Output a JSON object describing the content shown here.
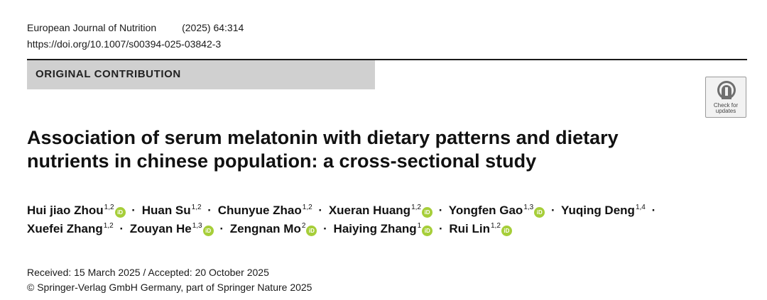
{
  "header": {
    "journal": "European Journal of Nutrition",
    "volume_info": "(2025) 64:314",
    "doi": "https://doi.org/10.1007/s00394-025-03842-3"
  },
  "section_label": "ORIGINAL CONTRIBUTION",
  "crossmark": {
    "line1": "Check for",
    "line2": "updates",
    "icon": "crossmark-icon"
  },
  "title": {
    "line1": "Association of serum melatonin with dietary patterns and dietary",
    "line2": "nutrients in chinese population: a cross-sectional study"
  },
  "orcid_label": "iD",
  "separator": "·",
  "authors": [
    {
      "name": "Hui jiao Zhou",
      "aff": "1,2"
    },
    {
      "name": "Huan Su",
      "aff": "1,2"
    },
    {
      "name": "Chunyue Zhao",
      "aff": "1,2"
    },
    {
      "name": "Xueran Huang",
      "aff": "1,2"
    },
    {
      "name": "Yongfen Gao",
      "aff": "1,3"
    },
    {
      "name": "Yuqing Deng",
      "aff": "1,4"
    },
    {
      "name": "Xuefei Zhang",
      "aff": "1,2"
    },
    {
      "name": "Zouyan He",
      "aff": "1,3"
    },
    {
      "name": "Zengnan Mo",
      "aff": "2"
    },
    {
      "name": "Haiying Zhang",
      "aff": "1"
    },
    {
      "name": "Rui Lin",
      "aff": "1,2"
    }
  ],
  "dates": "Received: 15 March 2025 / Accepted: 20 October 2025",
  "copyright": "© Springer-Verlag GmbH Germany, part of Springer Nature 2025"
}
